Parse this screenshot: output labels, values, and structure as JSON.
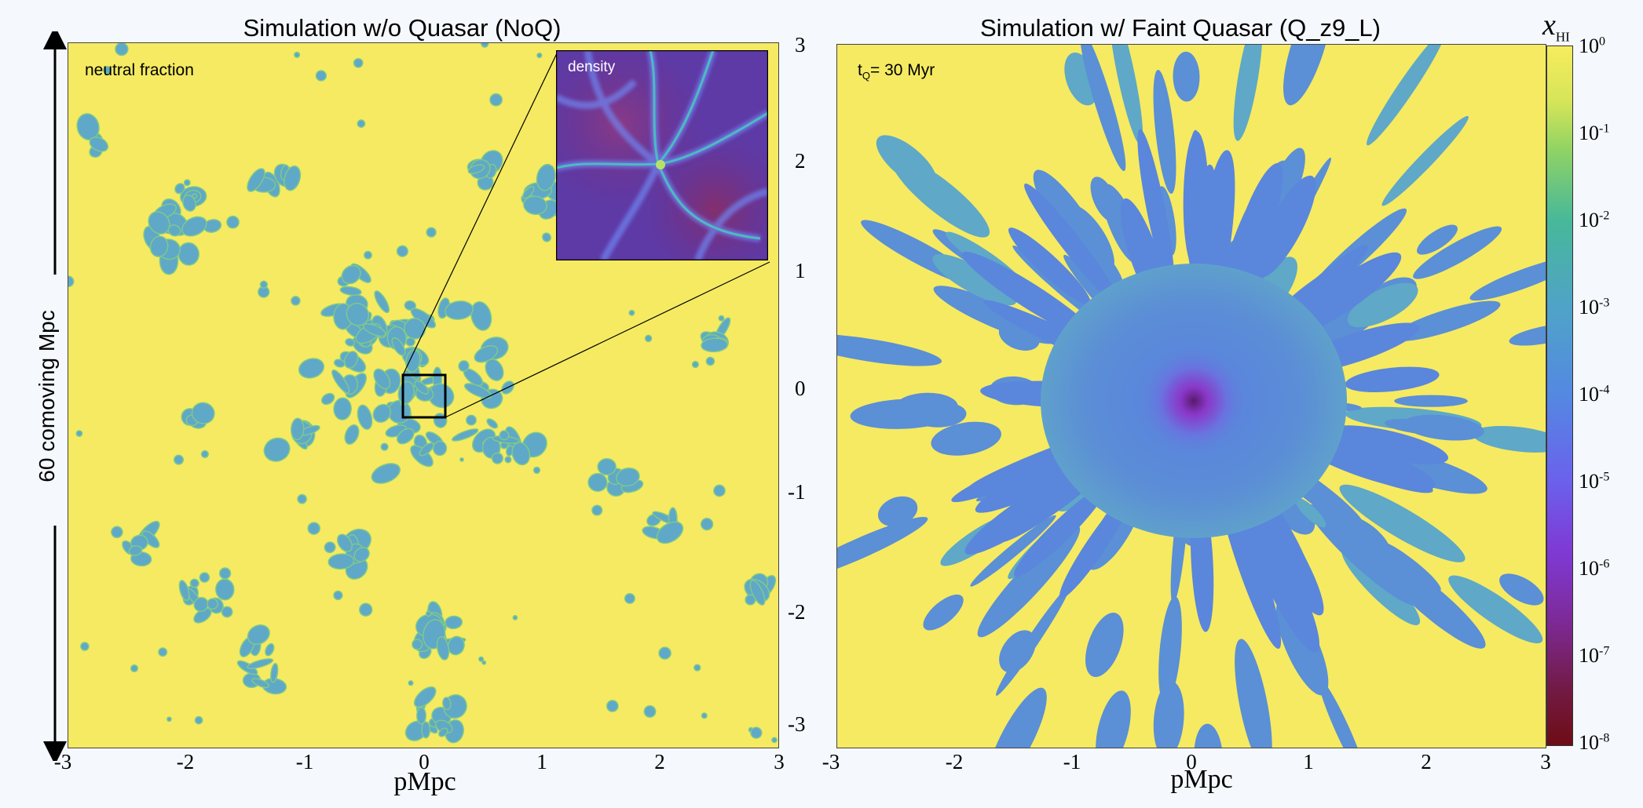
{
  "left_panel": {
    "title": "Simulation w/o Quasar (NoQ)",
    "corner_label": "neutral fraction",
    "inset_label": "density",
    "xlabel": "pMpc",
    "x_ticks": [
      "-3",
      "-2",
      "-1",
      "0",
      "1",
      "2",
      "3"
    ],
    "right_ticks": [
      "3",
      "2",
      "1",
      "0",
      "-1",
      "-2",
      "-3"
    ],
    "scale_label": "60 comoving Mpc"
  },
  "right_panel": {
    "title": "Simulation w/ Faint Quasar (Q_z9_L)",
    "corner_label_main": "t",
    "corner_label_sub": "Q",
    "corner_label_rest": "= 30 Myr",
    "xlabel": "pMpc",
    "x_ticks": [
      "-3",
      "-2",
      "-1",
      "0",
      "1",
      "2",
      "3"
    ]
  },
  "colorbar": {
    "symbol": "x",
    "symbol_sub": "HI",
    "ticks": [
      {
        "base": "10",
        "exp": "0"
      },
      {
        "base": "10",
        "exp": "-1"
      },
      {
        "base": "10",
        "exp": "-2"
      },
      {
        "base": "10",
        "exp": "-3"
      },
      {
        "base": "10",
        "exp": "-4"
      },
      {
        "base": "10",
        "exp": "-5"
      },
      {
        "base": "10",
        "exp": "-6"
      },
      {
        "base": "10",
        "exp": "-7"
      },
      {
        "base": "10",
        "exp": "-8"
      }
    ]
  }
}
